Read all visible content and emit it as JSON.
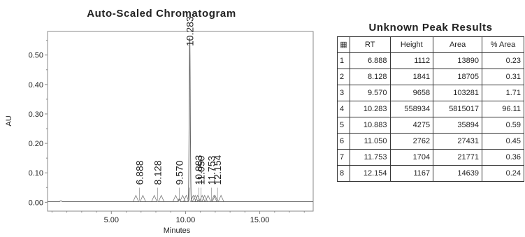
{
  "chart_data": {
    "type": "line",
    "title": "Auto-Scaled Chromatogram",
    "xlabel": "Minutes",
    "ylabel": "AU",
    "xlim": [
      0.7,
      18.6
    ],
    "ylim": [
      -0.03,
      0.58
    ],
    "x_ticks": [
      5.0,
      10.0,
      15.0
    ],
    "x_tick_labels": [
      "5.00",
      "10.00",
      "15.00"
    ],
    "y_ticks": [
      0.0,
      0.1,
      0.2,
      0.3,
      0.4,
      0.5
    ],
    "y_tick_labels": [
      "0.00",
      "0.10",
      "0.20",
      "0.30",
      "0.40",
      "0.50"
    ],
    "grid": false,
    "series": [
      {
        "color": "#666666",
        "peaks": [
          {
            "rt": 6.888,
            "height_au": 0.0011,
            "label": "6.888"
          },
          {
            "rt": 8.128,
            "height_au": 0.0018,
            "label": "8.128"
          },
          {
            "rt": 9.57,
            "height_au": 0.0097,
            "label": "9.570"
          },
          {
            "rt": 10.283,
            "height_au": 0.559,
            "label": "10.283"
          },
          {
            "rt": 10.883,
            "height_au": 0.0043,
            "label": "10.883"
          },
          {
            "rt": 11.05,
            "height_au": 0.0028,
            "label": "11.050"
          },
          {
            "rt": 11.753,
            "height_au": 0.0017,
            "label": "11.753"
          },
          {
            "rt": 12.154,
            "height_au": 0.0012,
            "label": "12.154"
          }
        ],
        "baseline_au": 0.002
      }
    ],
    "peak_marker_color": "#777777"
  },
  "results": {
    "title": "Unknown Peak Results",
    "corner_icon": "table-grid-icon",
    "columns": [
      "RT",
      "Height",
      "Area",
      "% Area"
    ],
    "rows": [
      {
        "index": "1",
        "rt": "6.888",
        "height": "1112",
        "area": "13890",
        "pct_area": "0.23"
      },
      {
        "index": "2",
        "rt": "8.128",
        "height": "1841",
        "area": "18705",
        "pct_area": "0.31"
      },
      {
        "index": "3",
        "rt": "9.570",
        "height": "9658",
        "area": "103281",
        "pct_area": "1.71"
      },
      {
        "index": "4",
        "rt": "10.283",
        "height": "558934",
        "area": "5815017",
        "pct_area": "96.11"
      },
      {
        "index": "5",
        "rt": "10.883",
        "height": "4275",
        "area": "35894",
        "pct_area": "0.59"
      },
      {
        "index": "6",
        "rt": "11.050",
        "height": "2762",
        "area": "27431",
        "pct_area": "0.45"
      },
      {
        "index": "7",
        "rt": "11.753",
        "height": "1704",
        "area": "21771",
        "pct_area": "0.36"
      },
      {
        "index": "8",
        "rt": "12.154",
        "height": "1167",
        "area": "14639",
        "pct_area": "0.24"
      }
    ]
  }
}
